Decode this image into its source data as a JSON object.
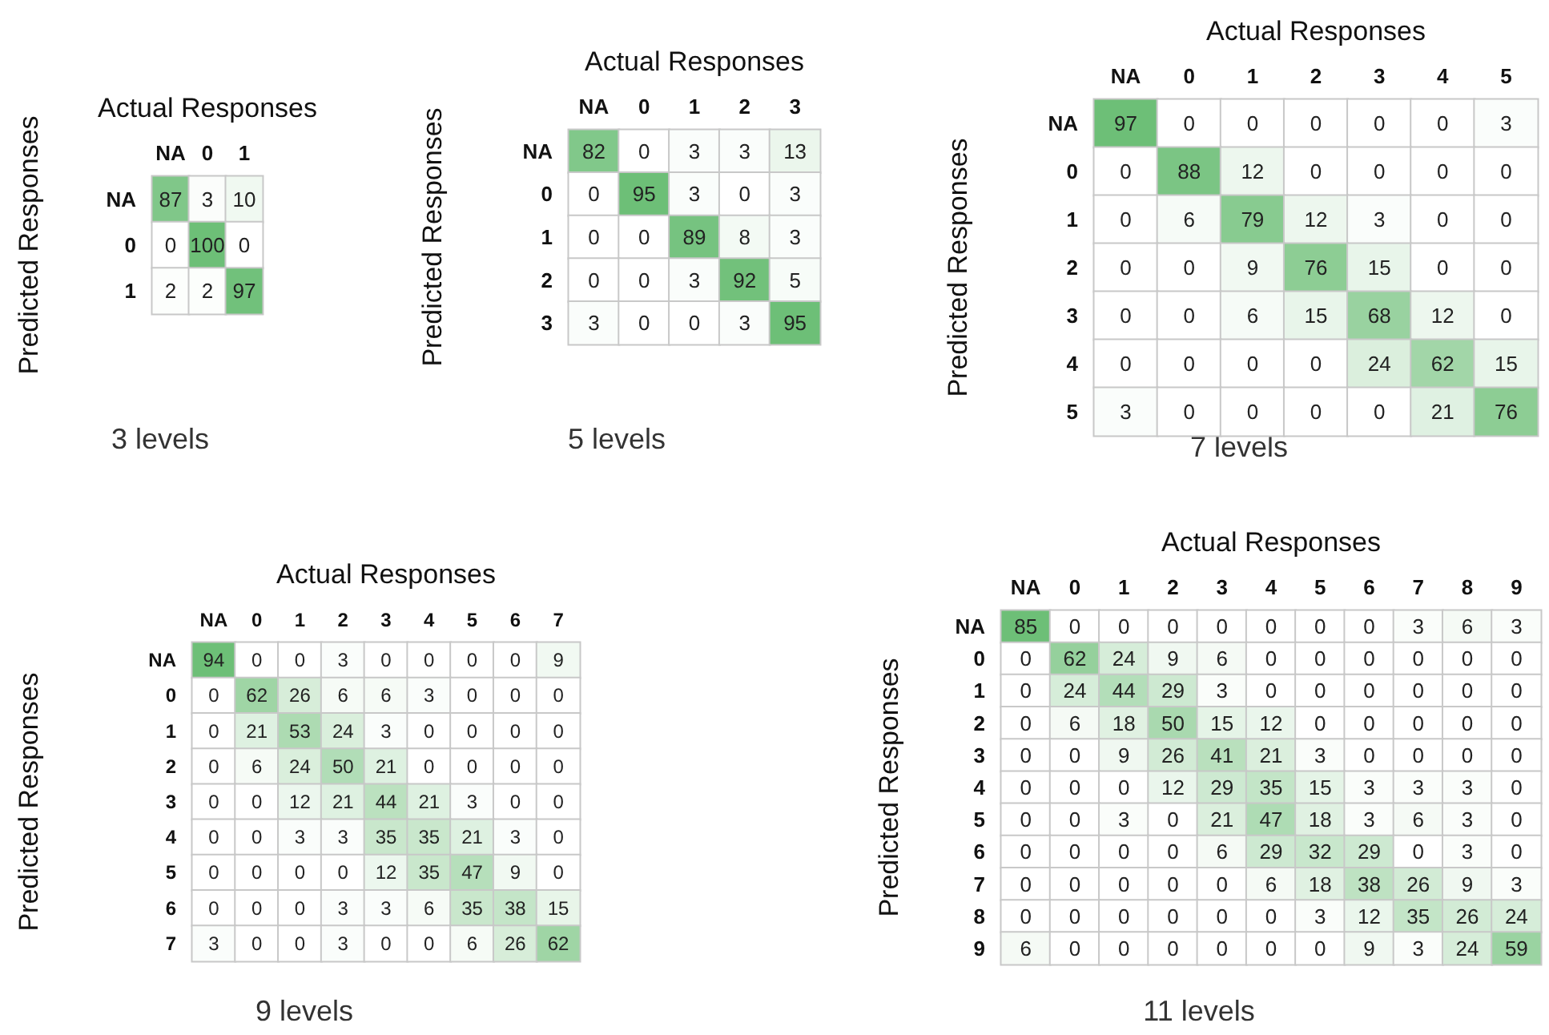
{
  "chart_data": [
    {
      "type": "heatmap",
      "xlabel": "Actual Responses",
      "ylabel": "Predicted Responses",
      "annotations": [
        "3 levels"
      ],
      "data_labels": true,
      "categories": [
        "NA",
        "0",
        "1"
      ],
      "y_categories": [
        "NA",
        "0",
        "1"
      ],
      "cells": [
        [
          87,
          3,
          10
        ],
        [
          0,
          100,
          0
        ],
        [
          2,
          2,
          97
        ]
      ]
    },
    {
      "type": "heatmap",
      "xlabel": "Actual Responses",
      "ylabel": "Predicted Responses",
      "annotations": [
        "5 levels"
      ],
      "data_labels": true,
      "categories": [
        "NA",
        "0",
        "1",
        "2",
        "3"
      ],
      "y_categories": [
        "NA",
        "0",
        "1",
        "2",
        "3"
      ],
      "cells": [
        [
          82,
          0,
          3,
          3,
          13
        ],
        [
          0,
          95,
          3,
          0,
          3
        ],
        [
          0,
          0,
          89,
          8,
          3
        ],
        [
          0,
          0,
          3,
          92,
          5
        ],
        [
          3,
          0,
          0,
          3,
          95
        ]
      ]
    },
    {
      "type": "heatmap",
      "xlabel": "Actual Responses",
      "ylabel": "Predicted Responses",
      "annotations": [
        "7 levels"
      ],
      "data_labels": true,
      "categories": [
        "NA",
        "0",
        "1",
        "2",
        "3",
        "4",
        "5"
      ],
      "y_categories": [
        "NA",
        "0",
        "1",
        "2",
        "3",
        "4",
        "5"
      ],
      "cells": [
        [
          97,
          0,
          0,
          0,
          0,
          0,
          3
        ],
        [
          0,
          88,
          12,
          0,
          0,
          0,
          0
        ],
        [
          0,
          6,
          79,
          12,
          3,
          0,
          0
        ],
        [
          0,
          0,
          9,
          76,
          15,
          0,
          0
        ],
        [
          0,
          0,
          6,
          15,
          68,
          12,
          0
        ],
        [
          0,
          0,
          0,
          0,
          24,
          62,
          15
        ],
        [
          3,
          0,
          0,
          0,
          0,
          21,
          76
        ]
      ]
    },
    {
      "type": "heatmap",
      "xlabel": "Actual Responses",
      "ylabel": "Predicted Responses",
      "annotations": [
        "9 levels"
      ],
      "data_labels": true,
      "categories": [
        "NA",
        "0",
        "1",
        "2",
        "3",
        "4",
        "5",
        "6",
        "7"
      ],
      "y_categories": [
        "NA",
        "0",
        "1",
        "2",
        "3",
        "4",
        "5",
        "6",
        "7"
      ],
      "cells": [
        [
          94,
          0,
          0,
          3,
          0,
          0,
          0,
          0,
          9
        ],
        [
          0,
          62,
          26,
          6,
          6,
          3,
          0,
          0,
          0
        ],
        [
          0,
          21,
          53,
          24,
          3,
          0,
          0,
          0,
          0
        ],
        [
          0,
          6,
          24,
          50,
          21,
          0,
          0,
          0,
          0
        ],
        [
          0,
          0,
          12,
          21,
          44,
          21,
          3,
          0,
          0
        ],
        [
          0,
          0,
          3,
          3,
          35,
          35,
          21,
          3,
          0
        ],
        [
          0,
          0,
          0,
          0,
          12,
          35,
          47,
          9,
          0
        ],
        [
          0,
          0,
          0,
          3,
          3,
          6,
          35,
          38,
          15
        ],
        [
          3,
          0,
          0,
          3,
          0,
          0,
          6,
          26,
          62
        ]
      ]
    },
    {
      "type": "heatmap",
      "xlabel": "Actual Responses",
      "ylabel": "Predicted Responses",
      "annotations": [
        "11 levels"
      ],
      "data_labels": true,
      "categories": [
        "NA",
        "0",
        "1",
        "2",
        "3",
        "4",
        "5",
        "6",
        "7",
        "8",
        "9"
      ],
      "y_categories": [
        "NA",
        "0",
        "1",
        "2",
        "3",
        "4",
        "5",
        "6",
        "7",
        "8",
        "9"
      ],
      "cells": [
        [
          85,
          0,
          0,
          0,
          0,
          0,
          0,
          0,
          3,
          6,
          3
        ],
        [
          0,
          62,
          24,
          9,
          6,
          0,
          0,
          0,
          0,
          0,
          0
        ],
        [
          0,
          24,
          44,
          29,
          3,
          0,
          0,
          0,
          0,
          0,
          0
        ],
        [
          0,
          6,
          18,
          50,
          15,
          12,
          0,
          0,
          0,
          0,
          0
        ],
        [
          0,
          0,
          9,
          26,
          41,
          21,
          3,
          0,
          0,
          0,
          0
        ],
        [
          0,
          0,
          0,
          12,
          29,
          35,
          15,
          3,
          3,
          3,
          0
        ],
        [
          0,
          0,
          3,
          0,
          21,
          47,
          18,
          3,
          6,
          3,
          0
        ],
        [
          0,
          0,
          0,
          0,
          6,
          29,
          32,
          29,
          0,
          3,
          0
        ],
        [
          0,
          0,
          0,
          0,
          0,
          6,
          18,
          38,
          26,
          9,
          3
        ],
        [
          0,
          0,
          0,
          0,
          0,
          0,
          3,
          12,
          35,
          26,
          24
        ],
        [
          6,
          0,
          0,
          0,
          0,
          0,
          0,
          9,
          3,
          24,
          59
        ]
      ]
    }
  ]
}
